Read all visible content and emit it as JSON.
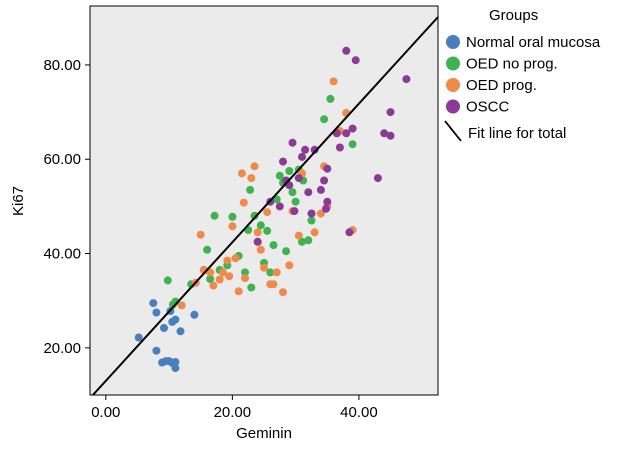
{
  "chart_data": {
    "type": "scatter",
    "xlabel": "Geminin",
    "ylabel": "Ki67",
    "xlim": [
      -2.5,
      52.5
    ],
    "ylim": [
      10.0,
      92.5
    ],
    "xticks": [
      0,
      20,
      40
    ],
    "yticks": [
      20,
      40,
      60,
      80
    ],
    "x_tick_labels": [
      "0.00",
      "20.00",
      "40.00"
    ],
    "y_tick_labels": [
      "20.00",
      "40.00",
      "60.00",
      "80.00"
    ],
    "grid": false,
    "background": "#ebebeb",
    "legend": {
      "title": "Groups",
      "position": "top-right, outside plot",
      "fit_label": "Fit line for total"
    },
    "fit_line": {
      "slope": 1.47,
      "intercept": 13.0,
      "color": "#000000"
    },
    "series": [
      {
        "name": "Normal oral mucosa",
        "color": "#4a7fbf",
        "points": [
          [
            5.2,
            22.2
          ],
          [
            7.5,
            29.5
          ],
          [
            8.0,
            27.5
          ],
          [
            8.0,
            19.4
          ],
          [
            8.9,
            16.9
          ],
          [
            9.5,
            17.2
          ],
          [
            10.0,
            17.2
          ],
          [
            10.5,
            16.8
          ],
          [
            11.0,
            17.0
          ],
          [
            11.0,
            15.7
          ],
          [
            10.2,
            27.8
          ],
          [
            10.5,
            25.5
          ],
          [
            11.0,
            26.0
          ],
          [
            11.8,
            23.5
          ],
          [
            14.0,
            27.0
          ],
          [
            9.2,
            24.2
          ]
        ]
      },
      {
        "name": "OED no prog.",
        "color": "#3fb34f",
        "points": [
          [
            9.8,
            34.3
          ],
          [
            10.6,
            29.2
          ],
          [
            11.0,
            29.8
          ],
          [
            13.5,
            33.5
          ],
          [
            15.5,
            36.5
          ],
          [
            16.0,
            40.8
          ],
          [
            16.5,
            34.6
          ],
          [
            17.2,
            48.0
          ],
          [
            18.0,
            36.5
          ],
          [
            19.2,
            37.5
          ],
          [
            20.0,
            47.8
          ],
          [
            21.0,
            39.5
          ],
          [
            22.0,
            36.0
          ],
          [
            22.5,
            45.0
          ],
          [
            22.8,
            53.5
          ],
          [
            23.0,
            32.8
          ],
          [
            23.5,
            48.0
          ],
          [
            24.0,
            42.5
          ],
          [
            24.5,
            46.0
          ],
          [
            25.0,
            38.0
          ],
          [
            25.5,
            44.8
          ],
          [
            26.0,
            36.0
          ],
          [
            26.5,
            41.8
          ],
          [
            27.0,
            51.5
          ],
          [
            27.5,
            56.5
          ],
          [
            28.0,
            55.0
          ],
          [
            28.5,
            40.5
          ],
          [
            29.0,
            57.5
          ],
          [
            29.5,
            53.0
          ],
          [
            30.0,
            51.0
          ],
          [
            30.5,
            57.8
          ],
          [
            31.0,
            42.5
          ],
          [
            31.2,
            55.5
          ],
          [
            32.0,
            42.8
          ],
          [
            32.5,
            47.0
          ],
          [
            34.5,
            68.5
          ],
          [
            35.5,
            72.8
          ],
          [
            39.0,
            63.2
          ]
        ]
      },
      {
        "name": "OED prog.",
        "color": "#f08a4b",
        "points": [
          [
            12.0,
            29.0
          ],
          [
            14.2,
            33.8
          ],
          [
            15.0,
            44.0
          ],
          [
            15.5,
            36.5
          ],
          [
            16.5,
            36.0
          ],
          [
            17.0,
            33.2
          ],
          [
            18.0,
            34.5
          ],
          [
            18.5,
            36.0
          ],
          [
            19.2,
            38.5
          ],
          [
            19.5,
            35.2
          ],
          [
            20.0,
            45.8
          ],
          [
            20.5,
            39.0
          ],
          [
            21.0,
            32.0
          ],
          [
            21.5,
            57.0
          ],
          [
            21.8,
            50.8
          ],
          [
            22.0,
            34.8
          ],
          [
            23.0,
            56.0
          ],
          [
            23.5,
            58.5
          ],
          [
            24.0,
            44.5
          ],
          [
            24.5,
            40.8
          ],
          [
            25.0,
            37.0
          ],
          [
            25.5,
            48.8
          ],
          [
            26.0,
            33.5
          ],
          [
            26.5,
            33.5
          ],
          [
            27.0,
            36.0
          ],
          [
            28.0,
            31.8
          ],
          [
            29.0,
            37.5
          ],
          [
            29.5,
            49.0
          ],
          [
            30.5,
            43.8
          ],
          [
            31.0,
            57.0
          ],
          [
            33.0,
            44.5
          ],
          [
            34.0,
            48.5
          ],
          [
            34.5,
            58.5
          ],
          [
            35.0,
            50.0
          ],
          [
            36.0,
            76.5
          ],
          [
            37.0,
            66.0
          ],
          [
            38.0,
            69.8
          ],
          [
            39.0,
            45.0
          ]
        ]
      },
      {
        "name": "OSCC",
        "color": "#8b3a96",
        "points": [
          [
            24.0,
            42.5
          ],
          [
            26.0,
            51.0
          ],
          [
            27.5,
            50.0
          ],
          [
            28.0,
            59.5
          ],
          [
            28.5,
            55.5
          ],
          [
            29.0,
            54.5
          ],
          [
            29.5,
            63.5
          ],
          [
            29.8,
            49.0
          ],
          [
            30.5,
            56.0
          ],
          [
            31.0,
            60.5
          ],
          [
            31.5,
            62.0
          ],
          [
            32.0,
            53.0
          ],
          [
            32.5,
            48.5
          ],
          [
            33.0,
            62.0
          ],
          [
            34.0,
            53.5
          ],
          [
            34.5,
            55.5
          ],
          [
            35.0,
            51.0
          ],
          [
            35.0,
            58.0
          ],
          [
            36.5,
            65.5
          ],
          [
            37.0,
            62.5
          ],
          [
            38.0,
            83.0
          ],
          [
            38.5,
            44.5
          ],
          [
            38.0,
            65.5
          ],
          [
            39.0,
            66.5
          ],
          [
            39.5,
            81.0
          ],
          [
            43.0,
            56.0
          ],
          [
            44.0,
            65.5
          ],
          [
            45.0,
            70.0
          ],
          [
            45.0,
            65.0
          ],
          [
            47.5,
            77.0
          ],
          [
            34.8,
            49.5
          ]
        ]
      }
    ]
  }
}
